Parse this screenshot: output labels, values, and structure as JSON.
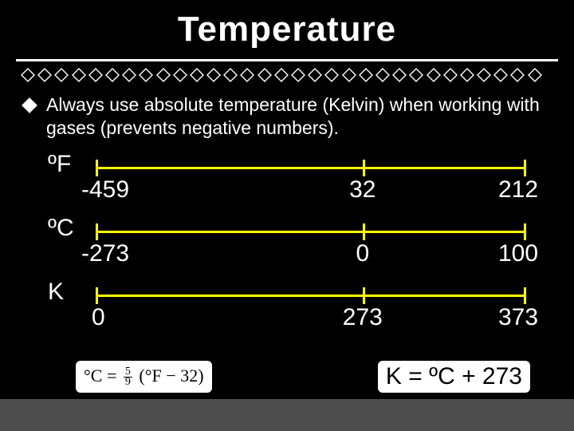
{
  "title": "Temperature",
  "bullet": "Always use absolute temperature (Kelvin) when working with gases (prevents negative numbers).",
  "decor": {
    "diamond_count": 31,
    "diamond_fill": "#000000",
    "diamond_stroke": "#ffffff",
    "title_color": "#ffffff",
    "bg_color": "#000000",
    "line_color": "#ffff00",
    "text_color": "#ffffff",
    "bottom_bar_color": "#4d4d4d"
  },
  "scales": [
    {
      "label": "ºF",
      "values": [
        {
          "pos": 0,
          "text": "-459"
        },
        {
          "pos": 62,
          "text": "32"
        },
        {
          "pos": 100,
          "text": "212"
        }
      ]
    },
    {
      "label": "ºC",
      "values": [
        {
          "pos": 0,
          "text": "-273"
        },
        {
          "pos": 62,
          "text": "0"
        },
        {
          "pos": 100,
          "text": "100"
        }
      ]
    },
    {
      "label": "K",
      "values": [
        {
          "pos": 0,
          "text": "0"
        },
        {
          "pos": 62,
          "text": "273"
        },
        {
          "pos": 100,
          "text": "373"
        }
      ]
    }
  ],
  "formula_c": {
    "lhs_unit": "°C",
    "eq": "=",
    "frac_num": "5",
    "frac_den": "9",
    "lparen": "(",
    "rhs_unit": "°F",
    "minus": "−",
    "const": "32",
    "rparen": ")"
  },
  "formula_k": "K = ºC + 273"
}
